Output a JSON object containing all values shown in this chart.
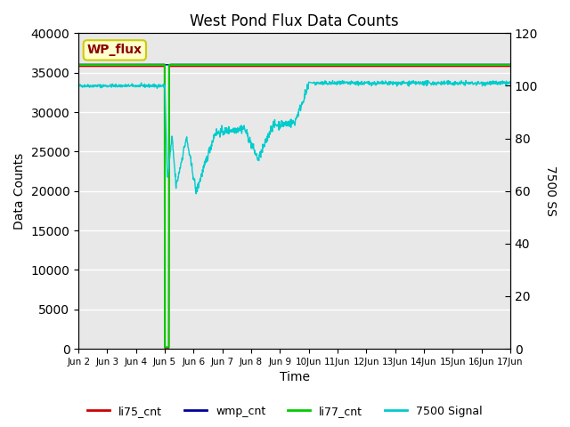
{
  "title": "West Pond Flux Data Counts",
  "xlabel": "Time",
  "ylabel_left": "Data Counts",
  "ylabel_right": "7500 SS",
  "annotation_text": "WP_flux",
  "annotation_color": "#8B0000",
  "annotation_bg": "#FFFFCC",
  "annotation_border": "#CCCC00",
  "ylim_left": [
    0,
    40000
  ],
  "ylim_right": [
    0,
    120
  ],
  "yticks_left": [
    0,
    5000,
    10000,
    15000,
    20000,
    25000,
    30000,
    35000,
    40000
  ],
  "yticks_right": [
    0,
    20,
    40,
    60,
    80,
    100,
    120
  ],
  "bg_color": "#E8E8E8",
  "fig_bg": "#FFFFFF",
  "grid_color": "#FFFFFF",
  "legend_labels": [
    "li75_cnt",
    "wmp_cnt",
    "li77_cnt",
    "7500 Signal"
  ],
  "legend_colors": [
    "#CC0000",
    "#000099",
    "#00CC00",
    "#00CCCC"
  ],
  "n_points": 1440
}
